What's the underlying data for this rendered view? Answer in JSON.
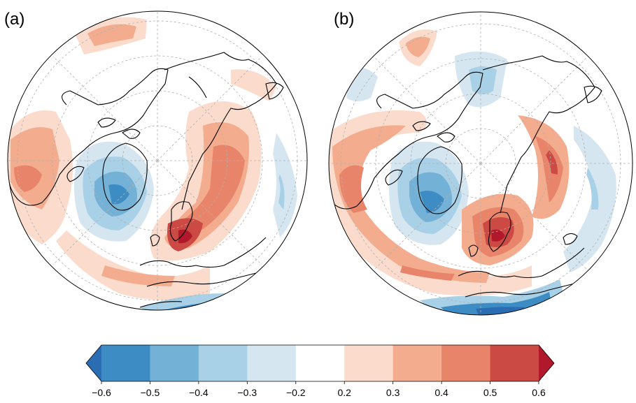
{
  "panels": [
    {
      "label": "(a)"
    },
    {
      "label": "(b)"
    }
  ],
  "colorbar": {
    "ticks": [
      "−0.6",
      "−0.5",
      "−0.4",
      "−0.3",
      "−0.2",
      "0.2",
      "0.3",
      "0.4",
      "0.5",
      "0.6"
    ],
    "colors": [
      "#2b6db3",
      "#3d8cc4",
      "#73b2d6",
      "#a8d0e6",
      "#d6e6f1",
      "#ffffff",
      "#fbdccc",
      "#f4ac8e",
      "#e8846a",
      "#cc4a44",
      "#b2182b"
    ],
    "extend": "both"
  },
  "colors": {
    "coast": "#000000",
    "graticule": "#b0b0b0"
  }
}
